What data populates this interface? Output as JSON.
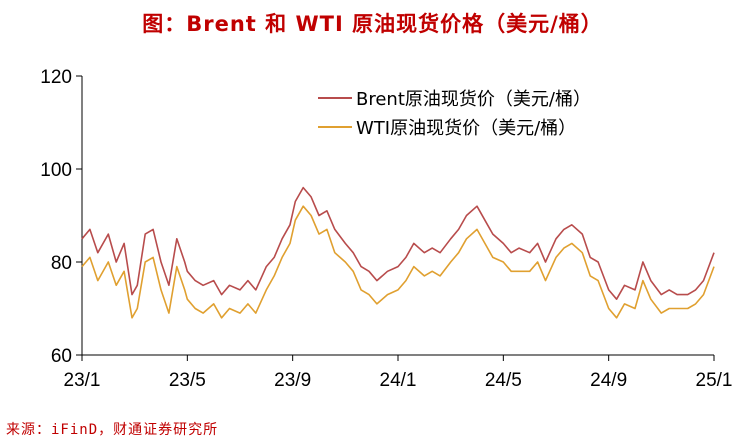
{
  "title": "图：Brent 和 WTI 原油现货价格（美元/桶）",
  "source": "来源：iFinD，财通证券研究所",
  "chart_data": {
    "type": "line",
    "title": "图：Brent 和 WTI 原油现货价格（美元/桶）",
    "xlabel": "",
    "ylabel": "",
    "ylim": [
      60,
      120
    ],
    "y_ticks": [
      "60",
      "80",
      "100",
      "120"
    ],
    "x_ticks": [
      "23/1",
      "23/5",
      "23/9",
      "24/1",
      "24/5",
      "24/9",
      "25/1"
    ],
    "x_tick_positions": [
      0,
      4,
      8,
      12,
      16,
      20,
      24
    ],
    "xlim": [
      0,
      24
    ],
    "grid": false,
    "legend_position": "top-right",
    "series": [
      {
        "name": "Brent原油现货价（美元/桶）",
        "color": "#b84c4c",
        "x": [
          0,
          0.3,
          0.6,
          1.0,
          1.3,
          1.6,
          1.9,
          2.1,
          2.4,
          2.7,
          3.0,
          3.3,
          3.6,
          3.9,
          4.0,
          4.3,
          4.6,
          5.0,
          5.3,
          5.6,
          6.0,
          6.3,
          6.6,
          7.0,
          7.3,
          7.6,
          7.9,
          8.1,
          8.4,
          8.7,
          9.0,
          9.3,
          9.6,
          10.0,
          10.3,
          10.6,
          10.9,
          11.2,
          11.6,
          12.0,
          12.3,
          12.6,
          13.0,
          13.3,
          13.6,
          14.0,
          14.3,
          14.6,
          15.0,
          15.3,
          15.6,
          16.0,
          16.3,
          16.6,
          17.0,
          17.3,
          17.6,
          18.0,
          18.3,
          18.6,
          19.0,
          19.3,
          19.6,
          20.0,
          20.3,
          20.6,
          21.0,
          21.3,
          21.6,
          22.0,
          22.3,
          22.6,
          23.0,
          23.3,
          23.6,
          24.0
        ],
        "values": [
          85,
          87,
          82,
          86,
          80,
          84,
          73,
          75,
          86,
          87,
          80,
          75,
          85,
          80,
          78,
          76,
          75,
          76,
          73,
          75,
          74,
          76,
          74,
          79,
          81,
          85,
          88,
          93,
          96,
          94,
          90,
          91,
          87,
          84,
          82,
          79,
          78,
          76,
          78,
          79,
          81,
          84,
          82,
          83,
          82,
          85,
          87,
          90,
          92,
          89,
          86,
          84,
          82,
          83,
          82,
          84,
          80,
          85,
          87,
          88,
          86,
          81,
          80,
          74,
          72,
          75,
          74,
          80,
          76,
          73,
          74,
          73,
          73,
          74,
          76,
          82
        ]
      },
      {
        "name": "WTI原油现货价（美元/桶）",
        "color": "#e0a030",
        "x": [
          0,
          0.3,
          0.6,
          1.0,
          1.3,
          1.6,
          1.9,
          2.1,
          2.4,
          2.7,
          3.0,
          3.3,
          3.6,
          3.9,
          4.0,
          4.3,
          4.6,
          5.0,
          5.3,
          5.6,
          6.0,
          6.3,
          6.6,
          7.0,
          7.3,
          7.6,
          7.9,
          8.1,
          8.4,
          8.7,
          9.0,
          9.3,
          9.6,
          10.0,
          10.3,
          10.6,
          10.9,
          11.2,
          11.6,
          12.0,
          12.3,
          12.6,
          13.0,
          13.3,
          13.6,
          14.0,
          14.3,
          14.6,
          15.0,
          15.3,
          15.6,
          16.0,
          16.3,
          16.6,
          17.0,
          17.3,
          17.6,
          18.0,
          18.3,
          18.6,
          19.0,
          19.3,
          19.6,
          20.0,
          20.3,
          20.6,
          21.0,
          21.3,
          21.6,
          22.0,
          22.3,
          22.6,
          23.0,
          23.3,
          23.6,
          24.0
        ],
        "values": [
          79,
          81,
          76,
          80,
          75,
          78,
          68,
          70,
          80,
          81,
          74,
          69,
          79,
          74,
          72,
          70,
          69,
          71,
          68,
          70,
          69,
          71,
          69,
          74,
          77,
          81,
          84,
          89,
          92,
          90,
          86,
          87,
          82,
          80,
          78,
          74,
          73,
          71,
          73,
          74,
          76,
          79,
          77,
          78,
          77,
          80,
          82,
          85,
          87,
          84,
          81,
          80,
          78,
          78,
          78,
          80,
          76,
          81,
          83,
          84,
          82,
          77,
          76,
          70,
          68,
          71,
          70,
          76,
          72,
          69,
          70,
          70,
          70,
          71,
          73,
          79
        ]
      }
    ]
  }
}
